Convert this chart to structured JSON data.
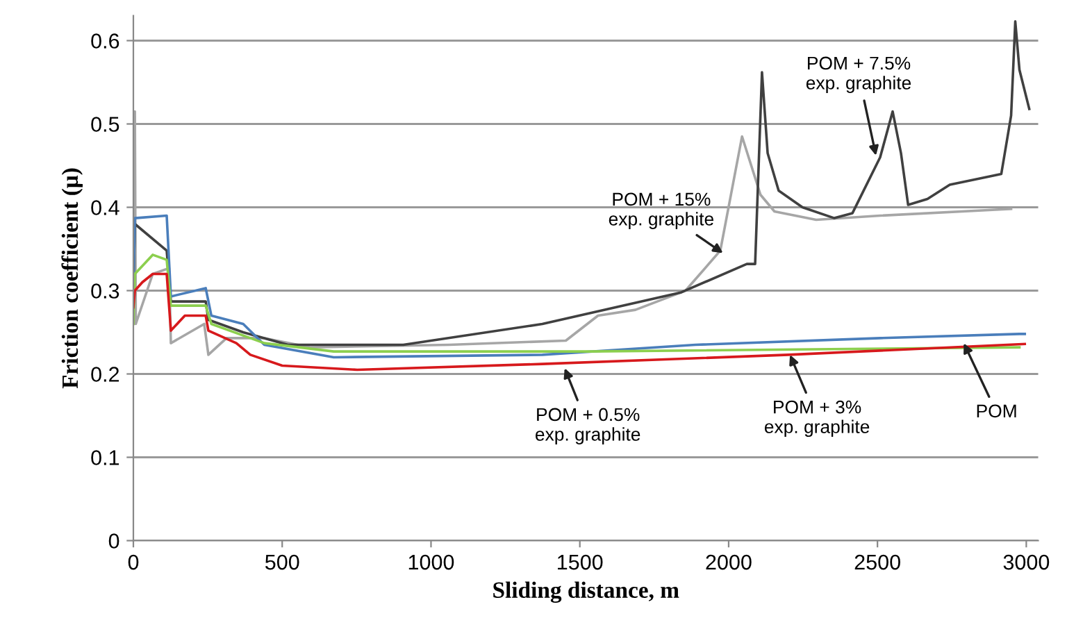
{
  "chart_data": {
    "type": "line",
    "xlabel": "Sliding distance, m",
    "ylabel": "Friction coefficient (μ)",
    "xlim": [
      0,
      3040
    ],
    "xticks": [
      0,
      500,
      1000,
      1500,
      2000,
      2500,
      3000
    ],
    "ylim": [
      0,
      0.63
    ],
    "yticks": [
      0,
      0.1,
      0.2,
      0.3,
      0.4,
      0.5,
      0.6
    ],
    "grid": "y",
    "line_style": "solid",
    "marker": "none",
    "series": [
      {
        "color": "#a6a6a6",
        "x": [
          0,
          5,
          8,
          65,
          120,
          126,
          238,
          252,
          313,
          440,
          593,
          1061,
          1453,
          1561,
          1687,
          1841,
          1855,
          1972,
          2045,
          2107,
          2154,
          2294,
          2509,
          2949
        ],
        "values": [
          0.26,
          0.515,
          0.26,
          0.32,
          0.327,
          0.237,
          0.26,
          0.223,
          0.243,
          0.243,
          0.232,
          0.235,
          0.24,
          0.27,
          0.277,
          0.298,
          0.3,
          0.348,
          0.485,
          0.415,
          0.395,
          0.385,
          0.39,
          0.398
        ]
      },
      {
        "color": "#404040",
        "x": [
          0,
          5,
          112,
          126,
          243,
          252,
          369,
          519,
          907,
          1374,
          1841,
          2061,
          2089,
          2112,
          2131,
          2168,
          2248,
          2355,
          2416,
          2509,
          2551,
          2579,
          2603,
          2668,
          2743,
          2916,
          2949,
          2963,
          2977,
          3010
        ],
        "values": [
          0.3,
          0.38,
          0.348,
          0.287,
          0.287,
          0.265,
          0.25,
          0.235,
          0.235,
          0.26,
          0.298,
          0.332,
          0.332,
          0.562,
          0.465,
          0.42,
          0.4,
          0.387,
          0.393,
          0.46,
          0.515,
          0.465,
          0.403,
          0.41,
          0.427,
          0.44,
          0.51,
          0.623,
          0.565,
          0.518
        ]
      },
      {
        "color": "#4a7ebb",
        "x": [
          0,
          5,
          112,
          126,
          243,
          262,
          369,
          440,
          673,
          1374,
          1888,
          2509,
          2977,
          2995
        ],
        "values": [
          0.3,
          0.387,
          0.39,
          0.293,
          0.303,
          0.27,
          0.26,
          0.235,
          0.22,
          0.223,
          0.235,
          0.243,
          0.248,
          0.248
        ]
      },
      {
        "color": "#8ccf4e",
        "x": [
          0,
          5,
          65,
          112,
          126,
          243,
          262,
          440,
          673,
          1528,
          2977
        ],
        "values": [
          0.26,
          0.32,
          0.343,
          0.337,
          0.282,
          0.282,
          0.26,
          0.237,
          0.227,
          0.227,
          0.232
        ]
      },
      {
        "color": "#d7191c",
        "x": [
          0,
          5,
          30,
          65,
          112,
          126,
          173,
          243,
          252,
          346,
          393,
          500,
          752,
          1374,
          2201,
          2995
        ],
        "values": [
          0.28,
          0.3,
          0.31,
          0.32,
          0.32,
          0.252,
          0.27,
          0.27,
          0.252,
          0.237,
          0.223,
          0.21,
          0.205,
          0.212,
          0.223,
          0.236
        ]
      }
    ],
    "annotations": [
      {
        "text": "POM + 15%\nexp. graphite",
        "x": 1981,
        "y": 0.345
      },
      {
        "text": "POM + 7.5%\nexp. graphite",
        "x": 2495,
        "y": 0.462
      },
      {
        "text": "POM + 0.5%\nexp. graphite",
        "x": 1449,
        "y": 0.207
      },
      {
        "text": "POM + 3%\nexp. graphite",
        "x": 2206,
        "y": 0.223
      },
      {
        "text": "POM",
        "x": 2790,
        "y": 0.237
      }
    ]
  }
}
